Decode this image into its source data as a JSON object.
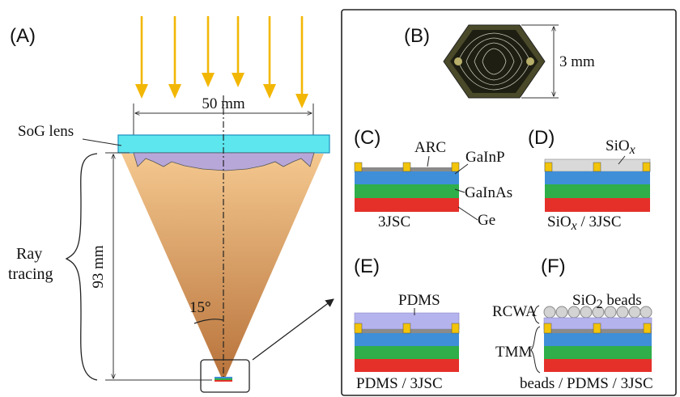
{
  "panels": {
    "A": "(A)",
    "B": "(B)",
    "C": "(C)",
    "D": "(D)",
    "E": "(E)",
    "F": "(F)"
  },
  "panel_a": {
    "width_label": "50 mm",
    "lens_label": "SoG lens",
    "height_label": "93 mm",
    "angle_label": "15°",
    "method_label_line1": "Ray",
    "method_label_line2": "tracing"
  },
  "panel_b": {
    "size_label": "3 mm"
  },
  "panel_c": {
    "arc_label": "ARC",
    "layer_top_label": "GaInP",
    "layer_mid_label": "GaInAs",
    "layer_bottom_label": "Ge",
    "caption": "3JSC"
  },
  "panel_d": {
    "coating_label_base": "SiO",
    "coating_label_sub": "x",
    "caption_base": "SiO",
    "caption_sub": "x",
    "caption_rest": " / 3JSC"
  },
  "panel_e": {
    "coating_label": "PDMS",
    "caption": "PDMS / 3JSC"
  },
  "panel_f": {
    "beads_label_pre": "SiO",
    "beads_label_sub": "2",
    "beads_label_post": " beads",
    "method_top": "RCWA",
    "method_bottom": "TMM",
    "caption": "beads / PDMS / 3JSC"
  },
  "colors": {
    "arrow": "#f2b705",
    "lens": "#5de6ee",
    "lens_fresnel": "#b7a7d9",
    "cone_top": "#f2c48a",
    "cone_bottom": "#b8743d",
    "ga_in_p": "#3f8fd8",
    "ga_in_as": "#2fae4a",
    "ge": "#e5302a",
    "contact": "#f2c40a",
    "arc": "#8a8a8a",
    "sio_x": "#d9d9d9",
    "pdms": "#b5b3ee",
    "bead": "#d3d3d3"
  }
}
